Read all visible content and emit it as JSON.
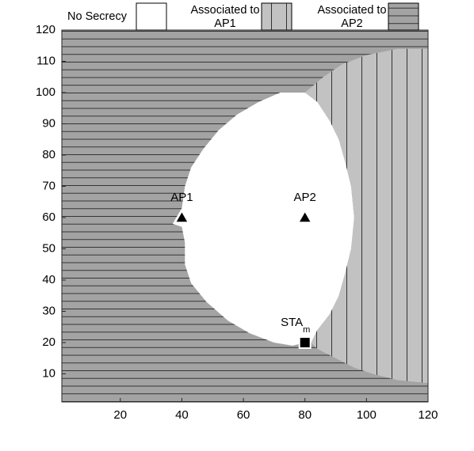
{
  "chart_data": {
    "type": "region",
    "xlim": [
      1,
      120
    ],
    "ylim": [
      1,
      120
    ],
    "xticks": [
      20,
      40,
      60,
      80,
      100,
      120
    ],
    "yticks": [
      10,
      20,
      30,
      40,
      50,
      60,
      70,
      80,
      90,
      100,
      110,
      120
    ],
    "series": [
      {
        "name": "Associated to AP2",
        "color": "#a3a3a3",
        "hatch": "horizontal",
        "x": [
          1,
          120,
          120,
          1
        ],
        "y": [
          1,
          1,
          120,
          120
        ]
      },
      {
        "name": "Associated to AP1",
        "color": "#c2c2c2",
        "hatch": "vertical",
        "x": [
          120,
          110,
          100,
          92,
          86,
          80,
          84,
          88,
          91,
          93,
          95,
          96,
          95,
          93,
          91,
          88,
          84,
          82,
          84,
          90,
          96,
          102,
          110,
          120
        ],
        "y": [
          114,
          114,
          112,
          109,
          105,
          100,
          97,
          91,
          85,
          78,
          70,
          60,
          50,
          42,
          35,
          29,
          24,
          20,
          18,
          15,
          12,
          10,
          8,
          7
        ]
      },
      {
        "name": "No Secrecy",
        "color": "#ffffff",
        "hatch": "none",
        "x": [
          80,
          76,
          70,
          62,
          55,
          48,
          43,
          41,
          41,
          40,
          37,
          40,
          41,
          43,
          47,
          52,
          58,
          65,
          72,
          80,
          84,
          88,
          91,
          93,
          95,
          96,
          95,
          93,
          91,
          88,
          84,
          82
        ],
        "y": [
          20,
          19,
          20,
          23,
          27,
          33,
          39,
          45,
          52,
          57,
          58,
          63,
          70,
          76,
          82,
          88,
          93,
          97,
          100,
          100,
          97,
          91,
          85,
          78,
          70,
          60,
          50,
          42,
          35,
          29,
          24,
          20
        ]
      }
    ],
    "points": [
      {
        "label": "AP1",
        "x": 40,
        "y": 60,
        "marker": "triangle"
      },
      {
        "label": "AP2",
        "x": 80,
        "y": 60,
        "marker": "triangle"
      },
      {
        "label": "STA",
        "subscript": "m",
        "x": 80,
        "y": 20,
        "marker": "square"
      }
    ]
  }
}
